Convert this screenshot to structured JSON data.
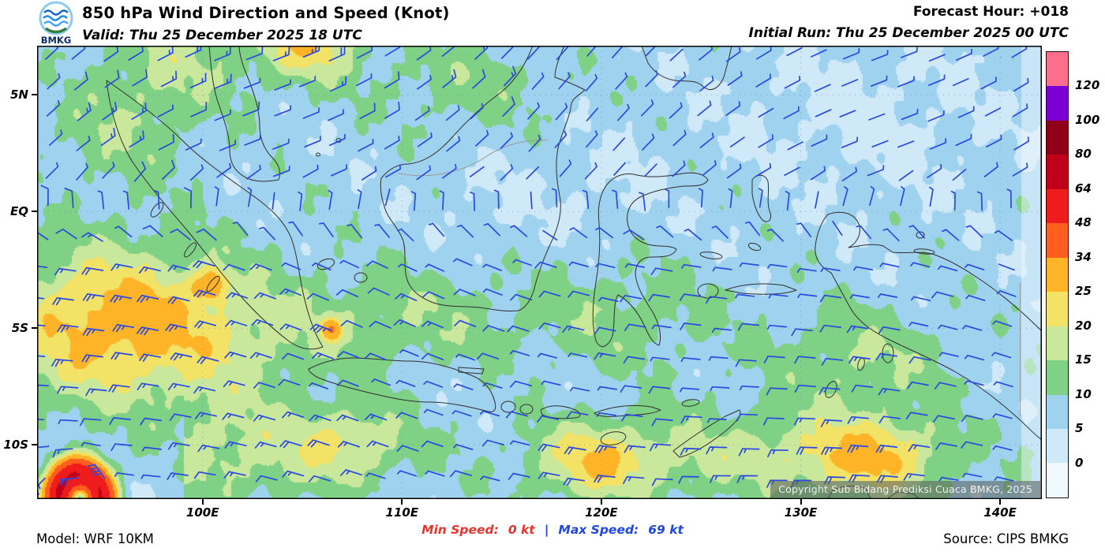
{
  "header": {
    "logo_text": "BMKG",
    "title": "850 hPa Wind Direction and Speed (Knot)",
    "valid": "Valid: Thu 25 December 2025 18 UTC",
    "forecast_hour": "Forecast Hour: +018",
    "initial_run": "Initial Run: Thu 25 December 2025 00 UTC"
  },
  "map": {
    "copyright": "Copyright Sub Bidang Prediksi Cuaca BMKG, 2025"
  },
  "axes": {
    "lat_labels": [
      "5N",
      "EQ",
      "5S",
      "10S"
    ],
    "lon_labels": [
      "100E",
      "110E",
      "120E",
      "130E",
      "140E"
    ]
  },
  "legend": {
    "values": [
      "120",
      "100",
      "80",
      "64",
      "48",
      "34",
      "25",
      "20",
      "15",
      "10",
      "5",
      "0"
    ],
    "colors": [
      "#FB6E8C",
      "#7A00D4",
      "#8F0016",
      "#C1001A",
      "#EE1C1C",
      "#FF5E1F",
      "#FFB428",
      "#F2E266",
      "#C9E89B",
      "#7FD185",
      "#9FD2EF",
      "#CFE9F9",
      "#EFF8FD"
    ]
  },
  "footer": {
    "model": "Model: WRF 10KM",
    "min_label": "Min Speed:",
    "min_value": "0 kt",
    "separator": "|",
    "max_label": "Max Speed:",
    "max_value": "69 kt",
    "source": "Source: CIPS BMKG"
  },
  "colors": {
    "barb": "#2b49e0",
    "min_text": "#e8332c",
    "max_text": "#1f46e0",
    "coastline": "#2f2f2f",
    "grid": "#6688bb",
    "border_line": "#9a9a9a",
    "frame": "#000000"
  }
}
